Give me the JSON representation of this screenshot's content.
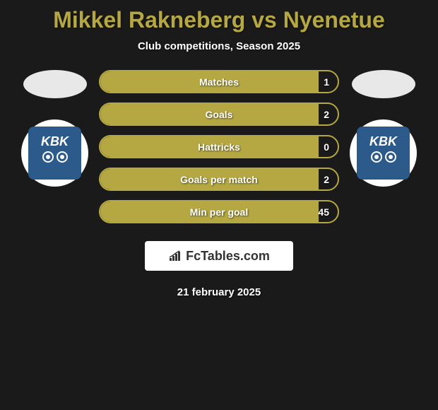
{
  "title": "Mikkel Rakneberg vs Nyenetue",
  "subtitle": "Club competitions, Season 2025",
  "date": "21 february 2025",
  "footer_brand": "FcTables.com",
  "club_label": "KBK",
  "colors": {
    "accent": "#b5a842",
    "background": "#1a1a1a",
    "text_white": "#ffffff",
    "club_blue": "#2c5a8a",
    "footer_bg": "#ffffff",
    "footer_text": "#333333"
  },
  "stats": [
    {
      "label": "Matches",
      "value": "1",
      "fill_percent": 92
    },
    {
      "label": "Goals",
      "value": "2",
      "fill_percent": 92
    },
    {
      "label": "Hattricks",
      "value": "0",
      "fill_percent": 92
    },
    {
      "label": "Goals per match",
      "value": "2",
      "fill_percent": 92
    },
    {
      "label": "Min per goal",
      "value": "45",
      "fill_percent": 92
    }
  ]
}
